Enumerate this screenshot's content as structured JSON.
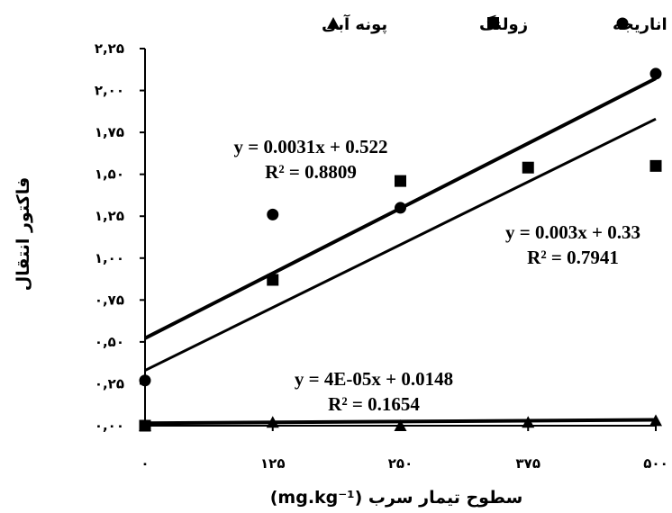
{
  "chart_data": {
    "type": "scatter",
    "title": "",
    "xlabel": "سطوح تیمار سرب (mg.kg⁻¹)",
    "ylabel": "فاکتور انتقال",
    "xlim": [
      0,
      500
    ],
    "ylim": [
      0,
      2.25
    ],
    "x_ticks": [
      0,
      125,
      250,
      375,
      500
    ],
    "x_tick_labels": [
      "۰",
      "۱۲۵",
      "۲۵۰",
      "۳۷۵",
      "۵۰۰"
    ],
    "y_ticks": [
      0,
      0.25,
      0.5,
      0.75,
      1.0,
      1.25,
      1.5,
      1.75,
      2.0,
      2.25
    ],
    "y_tick_labels": [
      "۰,۰۰",
      "۰,۲۵",
      "۰,۵۰",
      "۰,۷۵",
      "۱,۰۰",
      "۱,۲۵",
      "۱,۵۰",
      "۱,۷۵",
      "۲,۰۰",
      "۲,۲۵"
    ],
    "grid": false,
    "legend_position": "top",
    "series": [
      {
        "name": "اناریجه",
        "marker": "circle",
        "x": [
          0,
          125,
          250,
          500
        ],
        "y": [
          0.27,
          1.26,
          1.3,
          2.1
        ],
        "trendline": {
          "slope": 0.0031,
          "intercept": 0.522,
          "equation": "y = 0.0031x + 0.522",
          "r2": "R² = 0.8809"
        }
      },
      {
        "name": "زولنگ",
        "marker": "square",
        "x": [
          0,
          125,
          250,
          375,
          500
        ],
        "y": [
          0.0,
          0.87,
          1.46,
          1.54,
          1.55
        ],
        "trendline": {
          "slope": 0.003,
          "intercept": 0.33,
          "equation": "y = 0.003x + 0.33",
          "r2": "R² = 0.7941"
        }
      },
      {
        "name": "پونه آبی",
        "marker": "triangle",
        "x": [
          0,
          125,
          250,
          375,
          500
        ],
        "y": [
          0.0,
          0.02,
          0.0,
          0.02,
          0.03
        ],
        "trendline": {
          "slope": 4e-05,
          "intercept": 0.0148,
          "equation": "y = 4E-05x + 0.0148",
          "r2": "R² = 0.1654"
        }
      }
    ]
  }
}
